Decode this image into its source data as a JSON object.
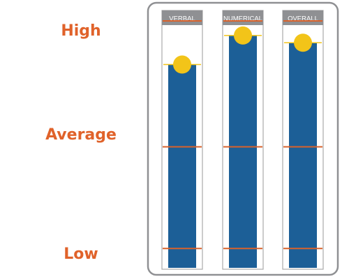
{
  "levels": {
    "high": "High",
    "average": "Average",
    "low": "Low"
  },
  "colors": {
    "level_text": "#e0622a",
    "bar": "#1c5f97",
    "header": "#8f9093",
    "marker": "#f2c419",
    "reference_line": "#d9622b",
    "frame": "#8f9093",
    "column_outline": "#a9a9ab"
  },
  "chart_data": {
    "type": "bar",
    "categories": [
      "VERBAL",
      "NUMERICAL",
      "OVERALL"
    ],
    "values": [
      0.84,
      0.96,
      0.93
    ],
    "ylim": [
      0,
      1
    ],
    "reference_levels": [
      {
        "name": "Low",
        "value": 0.08
      },
      {
        "name": "Average",
        "value": 0.5
      },
      {
        "name": "High",
        "value": 1.02
      }
    ],
    "marker": "circle",
    "grid": false,
    "legend": "none"
  }
}
